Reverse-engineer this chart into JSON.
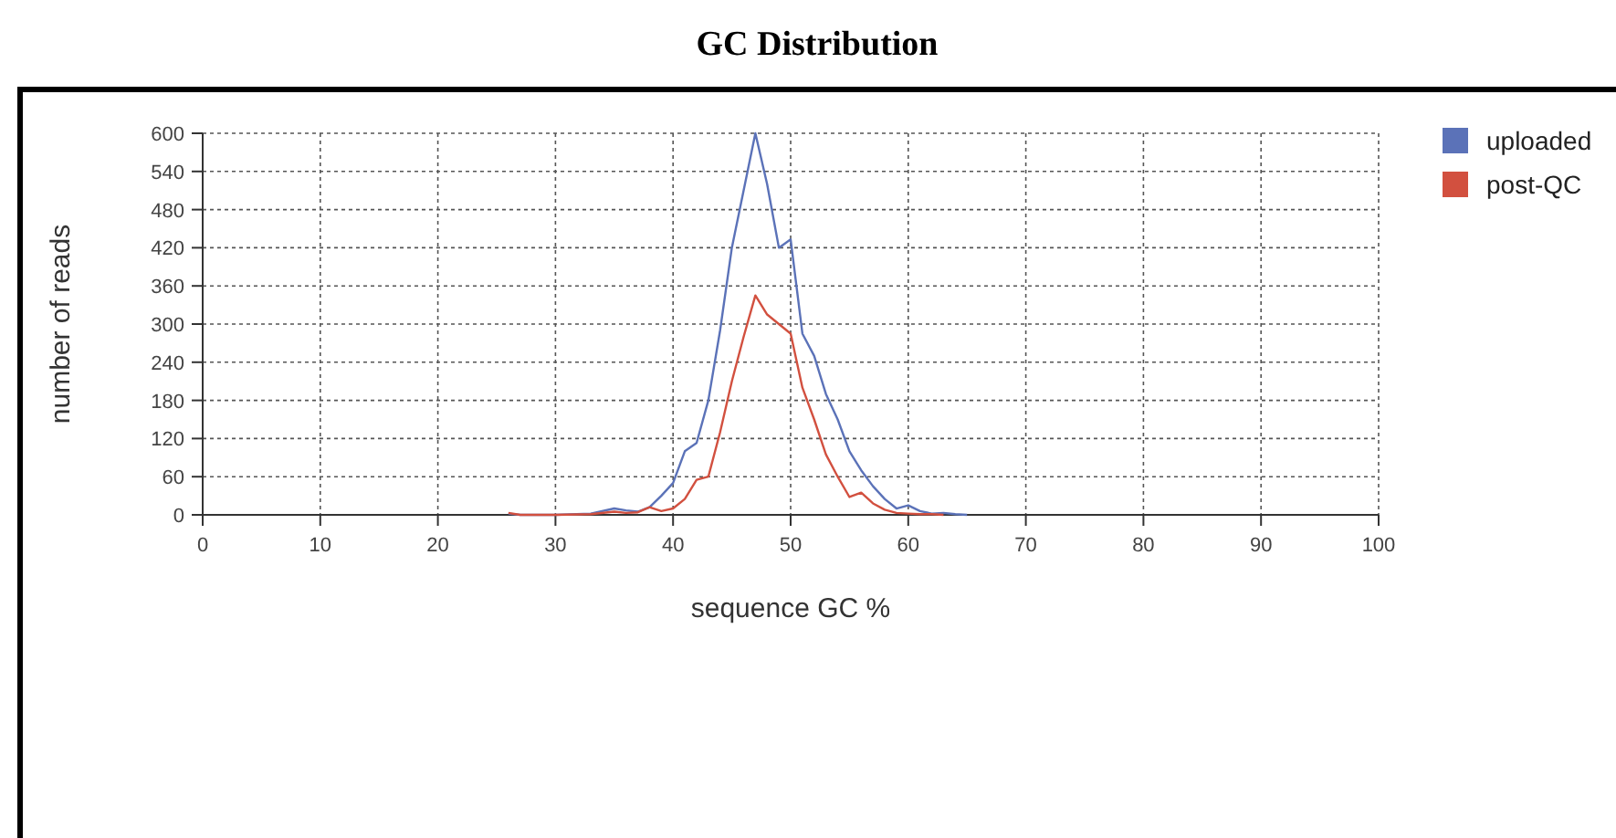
{
  "chart_data": {
    "type": "line",
    "title": "GC Distribution",
    "xlabel": "sequence GC %",
    "ylabel": "number of reads",
    "xlim": [
      0,
      100
    ],
    "xticks": [
      0,
      10,
      20,
      30,
      40,
      50,
      60,
      70,
      80,
      90,
      100
    ],
    "ylim": [
      0,
      600
    ],
    "yticks": [
      0,
      60,
      120,
      180,
      240,
      300,
      360,
      420,
      480,
      540,
      600
    ],
    "grid": true,
    "legend": "top right",
    "marker": "none",
    "line_style": "solid",
    "series": [
      {
        "name": "uploaded",
        "color": "#5b72b8",
        "x": [
          26,
          27,
          30,
          33,
          35,
          36,
          37,
          38,
          39,
          40,
          41,
          42,
          43,
          44,
          45,
          46,
          47,
          48,
          49,
          50,
          51,
          52,
          53,
          54,
          55,
          56,
          57,
          58,
          59,
          60,
          61,
          62,
          63,
          64,
          65
        ],
        "values": [
          2,
          0,
          0,
          2,
          10,
          7,
          5,
          12,
          30,
          50,
          100,
          113,
          180,
          290,
          420,
          510,
          600,
          520,
          420,
          433,
          285,
          250,
          190,
          150,
          100,
          70,
          45,
          25,
          10,
          15,
          6,
          2,
          3,
          1,
          0
        ]
      },
      {
        "name": "post-QC",
        "color": "#d2503f",
        "x": [
          26,
          27,
          30,
          33,
          35,
          36,
          37,
          38,
          39,
          40,
          41,
          42,
          43,
          44,
          45,
          46,
          47,
          48,
          49,
          50,
          51,
          52,
          53,
          54,
          55,
          56,
          57,
          58,
          59,
          60,
          61,
          62,
          63
        ],
        "values": [
          3,
          0,
          0,
          1,
          5,
          3,
          4,
          12,
          6,
          10,
          25,
          55,
          60,
          130,
          210,
          280,
          345,
          315,
          300,
          285,
          200,
          150,
          95,
          60,
          28,
          35,
          18,
          8,
          3,
          2,
          1,
          1,
          0
        ]
      }
    ]
  }
}
